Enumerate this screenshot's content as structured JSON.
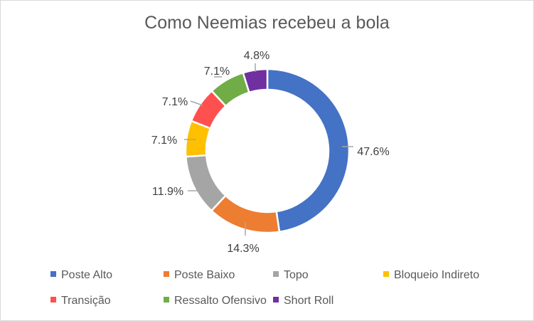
{
  "chart_data": {
    "type": "pie",
    "variant": "doughnut",
    "title": "Como Neemias recebeu a bola",
    "categories": [
      "Poste Alto",
      "Poste Baixo",
      "Topo",
      "Bloqueio Indireto",
      "Transição",
      "Ressalto Ofensivo",
      "Short Roll"
    ],
    "values": [
      47.6,
      14.3,
      11.9,
      7.1,
      7.1,
      7.1,
      4.8
    ],
    "labels": [
      "47.6%",
      "14.3%",
      "11.9%",
      "7.1%",
      "7.1%",
      "7.1%",
      "4.8%"
    ],
    "colors": [
      "#4472C4",
      "#ED7D31",
      "#A5A5A5",
      "#FFC000",
      "#FF5050",
      "#70AD47",
      "#7030A0"
    ],
    "legend": "bottom"
  }
}
